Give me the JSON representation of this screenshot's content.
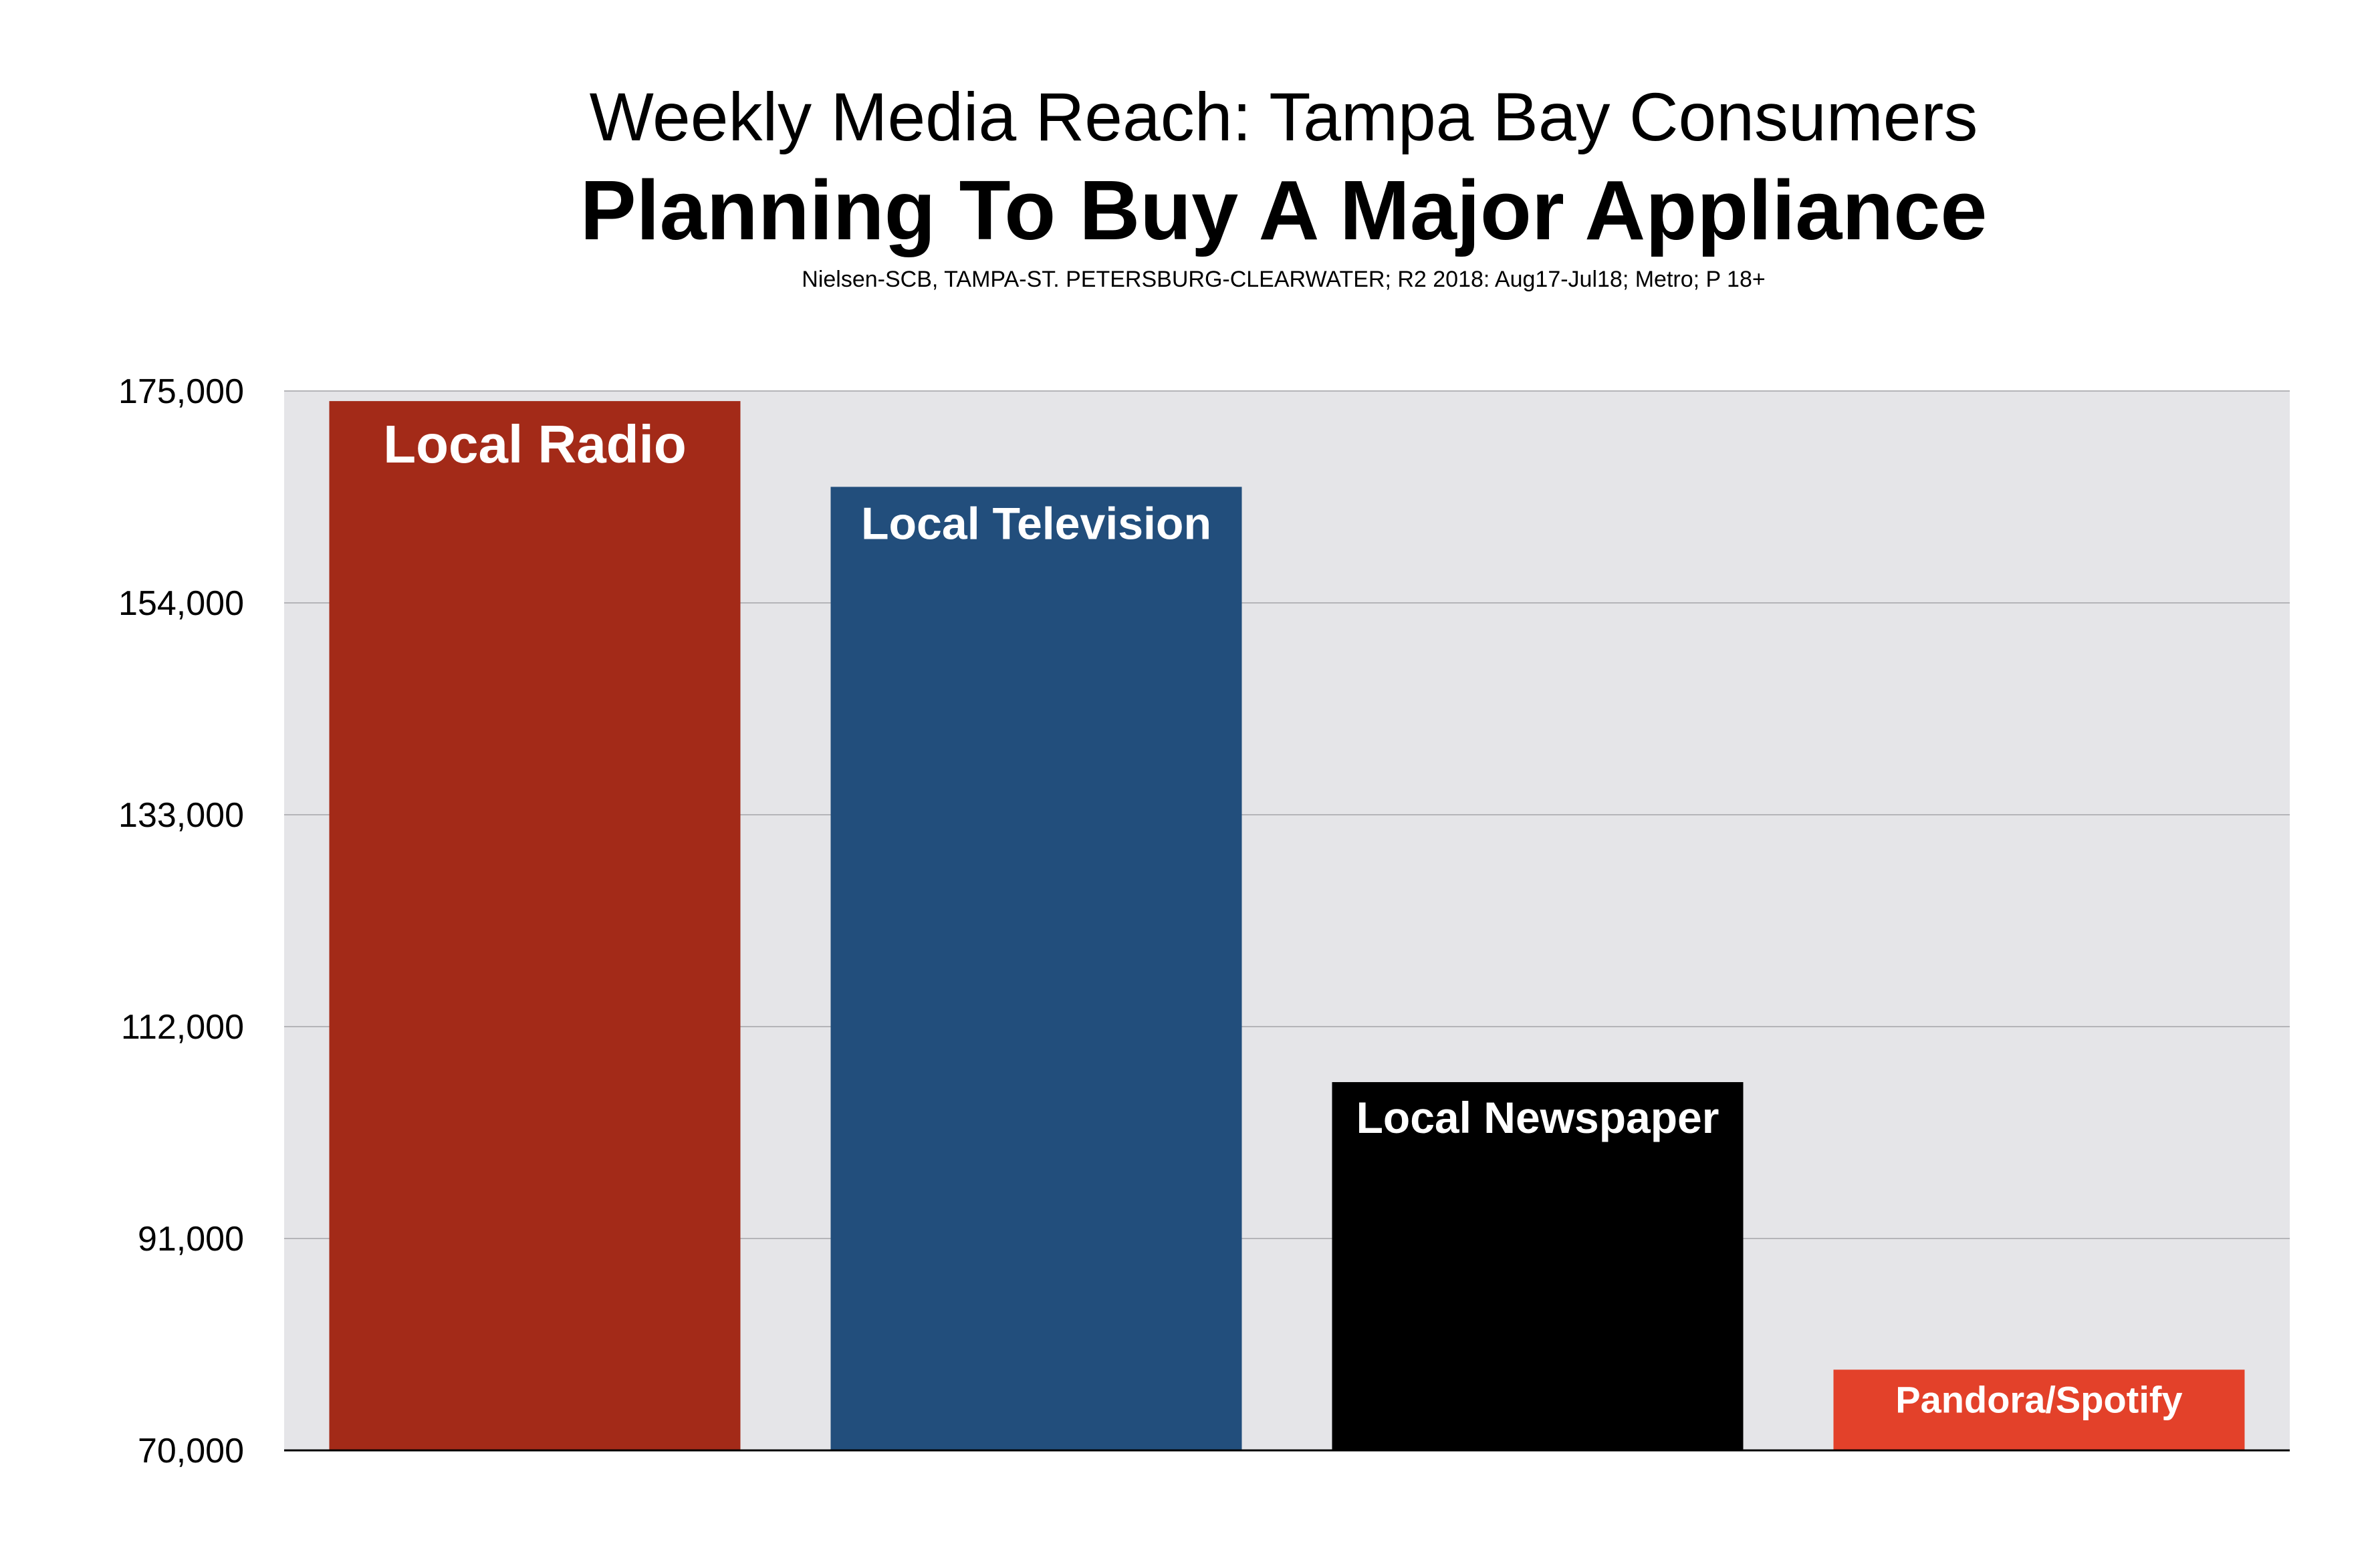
{
  "chart_data": {
    "type": "bar",
    "title": "Weekly Media Reach: Tampa Bay Consumers",
    "subtitle": "Planning To Buy A Major Appliance",
    "source": "Nielsen-SCB, TAMPA-ST. PETERSBURG-CLEARWATER; R2 2018: Aug17-Jul18; Metro; P 18+",
    "xlabel": "",
    "ylabel": "",
    "ylim": [
      70000,
      175000
    ],
    "yticks": [
      70000,
      91000,
      112000,
      133000,
      154000,
      175000
    ],
    "ytick_labels": [
      "70,000",
      "91,000",
      "112,000",
      "133,000",
      "154,000",
      "175,000"
    ],
    "grid": true,
    "categories": [
      "Local Radio",
      "Local Television",
      "Local Newspaper",
      "Pandora/Spotify"
    ],
    "values": [
      174000,
      165500,
      106500,
      78000
    ],
    "colors": [
      "#a32a18",
      "#224e7c",
      "#000000",
      "#e3412a"
    ],
    "plot_background": "#e5e5e8",
    "gridline_color": "#b4b4b8"
  }
}
